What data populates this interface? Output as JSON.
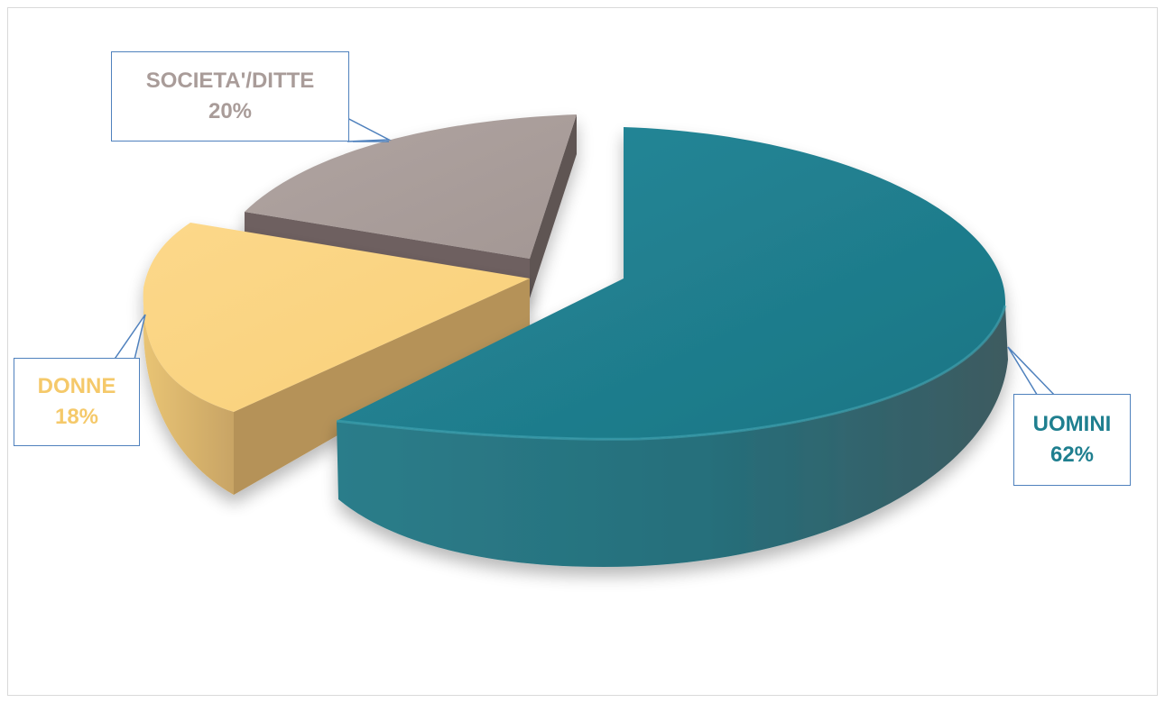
{
  "chart_data": {
    "type": "pie",
    "style": "3d-exploded",
    "title": "",
    "legend": "none",
    "slices": [
      {
        "label": "UOMINI",
        "percent_label": "62%",
        "value": 62,
        "color": "#1f7f8f",
        "dark": "#1a5e69",
        "label_color": "#1f7f8f"
      },
      {
        "label": "DONNE",
        "percent_label": "18%",
        "value": 18,
        "color": "#fbd47c",
        "dark": "#c9a464",
        "label_color": "#f5c96a"
      },
      {
        "label": "SOCIETA'/DITTE",
        "percent_label": "20%",
        "value": 20,
        "color": "#a99c99",
        "dark": "#6e6160",
        "label_color": "#a99c99"
      }
    ]
  }
}
